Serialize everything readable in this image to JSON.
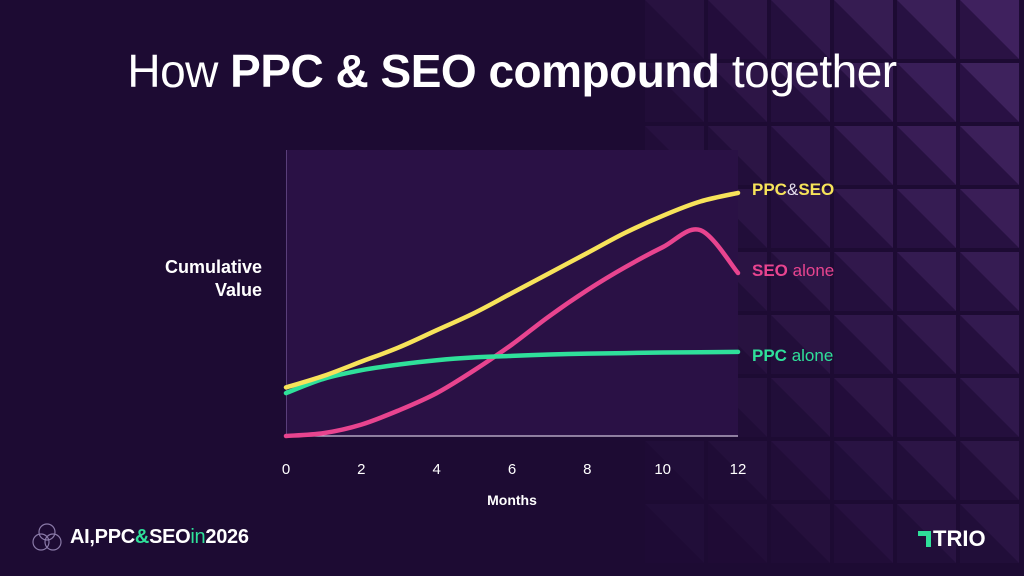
{
  "title": {
    "thin1": "How",
    "bold": "PPC & SEO compound",
    "thin2": "together"
  },
  "chart_data": {
    "type": "line",
    "title": "How PPC & SEO compound together",
    "xlabel": "Months",
    "ylabel": "Cumulative Value",
    "xlim": [
      0,
      12
    ],
    "ylim": [
      0,
      100
    ],
    "xticks": [
      "0",
      "2",
      "4",
      "6",
      "8",
      "10",
      "12"
    ],
    "grid": false,
    "series": [
      {
        "name": "PPC & SEO",
        "color": "#f7e35a",
        "x": [
          0,
          1,
          2,
          3,
          4,
          5,
          6,
          7,
          8,
          9,
          10,
          11,
          12
        ],
        "y": [
          17,
          21,
          26,
          31,
          37,
          43,
          50,
          57,
          64,
          71,
          77,
          82,
          85
        ]
      },
      {
        "name": "SEO alone",
        "color": "#e8448f",
        "x": [
          0,
          1,
          2,
          3,
          4,
          5,
          6,
          7,
          8,
          9,
          10,
          11,
          12
        ],
        "y": [
          0,
          1,
          4,
          9,
          15,
          23,
          32,
          42,
          51,
          59,
          66,
          72,
          57
        ]
      },
      {
        "name": "PPC alone",
        "color": "#2fe09a",
        "x": [
          0,
          1,
          2,
          3,
          4,
          5,
          6,
          7,
          8,
          9,
          10,
          11,
          12
        ],
        "y": [
          15,
          20,
          23,
          25,
          26.5,
          27.5,
          28,
          28.5,
          28.8,
          29,
          29.2,
          29.3,
          29.4
        ]
      }
    ]
  },
  "labels": {
    "both": {
      "a": "PPC",
      "amp": "&",
      "b": "SEO"
    },
    "seo": {
      "a": "SEO",
      "b": "alone"
    },
    "ppc": {
      "a": "PPC",
      "b": "alone"
    }
  },
  "footer": {
    "ai": "AI",
    "comma": ",",
    "ppc": "PPC",
    "amp": "&",
    "seo": "SEO",
    "in": "in",
    "year": "2026"
  },
  "brand": {
    "name": "TRIO"
  },
  "colors": {
    "background": "#1d0b33",
    "plot": "#2a1145",
    "yellow": "#f7e35a",
    "pink": "#e8448f",
    "green": "#2fe09a"
  }
}
